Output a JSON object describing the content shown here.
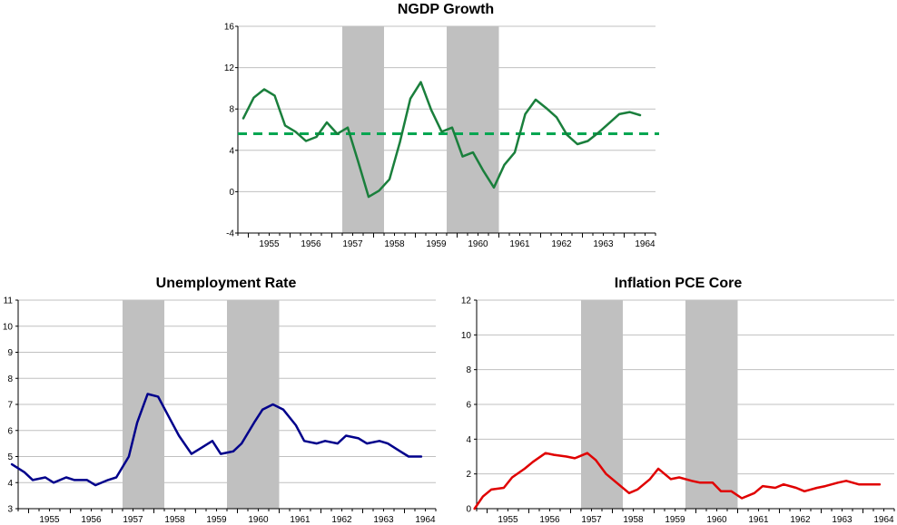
{
  "chart_data": [
    {
      "type": "line",
      "title": "NGDP Growth",
      "xlabel": "",
      "ylabel": "",
      "xlim": [
        1954.75,
        1964.75
      ],
      "ylim": [
        -4,
        16
      ],
      "yticks": [
        -4,
        0,
        4,
        8,
        12,
        16
      ],
      "xticks": [
        "1955",
        "1956",
        "1957",
        "1958",
        "1959",
        "1960",
        "1961",
        "1962",
        "1963",
        "1964"
      ],
      "recessions": [
        [
          1957.25,
          1958.25
        ],
        [
          1959.75,
          1961.0
        ]
      ],
      "reference_line": {
        "value": 5.6,
        "color": "#00a651",
        "style": "dashed"
      },
      "series": [
        {
          "name": "NGDP Growth",
          "color": "#1a7f3c",
          "x": [
            1954.88,
            1955.13,
            1955.38,
            1955.63,
            1955.88,
            1956.13,
            1956.38,
            1956.63,
            1956.88,
            1957.13,
            1957.38,
            1957.63,
            1957.88,
            1958.13,
            1958.38,
            1958.63,
            1958.88,
            1959.13,
            1959.38,
            1959.63,
            1959.88,
            1960.13,
            1960.38,
            1960.63,
            1960.88,
            1961.13,
            1961.38,
            1961.63,
            1961.88,
            1962.13,
            1962.38,
            1962.63,
            1962.88,
            1963.13,
            1963.38,
            1963.63,
            1963.88,
            1964.13,
            1964.38
          ],
          "values": [
            7.1,
            9.1,
            9.9,
            9.3,
            6.4,
            5.8,
            4.9,
            5.3,
            6.7,
            5.6,
            6.2,
            2.9,
            -0.5,
            0.1,
            1.2,
            4.8,
            9.0,
            10.6,
            7.9,
            5.8,
            6.2,
            3.4,
            3.8,
            2.0,
            0.4,
            2.6,
            3.8,
            7.5,
            8.9,
            8.1,
            7.2,
            5.5,
            4.6,
            4.9,
            5.7,
            6.6,
            7.5,
            7.7,
            7.4
          ]
        }
      ]
    },
    {
      "type": "line",
      "title": "Unemployment Rate",
      "xlabel": "",
      "ylabel": "",
      "xlim": [
        1954.75,
        1964.75
      ],
      "ylim": [
        3,
        11
      ],
      "yticks": [
        3,
        4,
        5,
        6,
        7,
        8,
        9,
        10,
        11
      ],
      "xticks": [
        "1955",
        "1956",
        "1957",
        "1958",
        "1959",
        "1960",
        "1961",
        "1962",
        "1963",
        "1964"
      ],
      "recessions": [
        [
          1957.25,
          1958.25
        ],
        [
          1959.75,
          1961.0
        ]
      ],
      "series": [
        {
          "name": "Unemployment Rate",
          "color": "#00008b",
          "x": [
            1954.6,
            1954.9,
            1955.1,
            1955.4,
            1955.6,
            1955.9,
            1956.1,
            1956.4,
            1956.6,
            1956.9,
            1957.1,
            1957.4,
            1957.6,
            1957.85,
            1958.1,
            1958.4,
            1958.6,
            1958.9,
            1959.1,
            1959.4,
            1959.6,
            1959.9,
            1960.1,
            1960.4,
            1960.6,
            1960.85,
            1961.1,
            1961.4,
            1961.6,
            1961.9,
            1962.1,
            1962.4,
            1962.6,
            1962.9,
            1963.1,
            1963.4,
            1963.6,
            1963.9,
            1964.1,
            1964.4
          ],
          "values": [
            4.7,
            4.4,
            4.1,
            4.2,
            4.0,
            4.2,
            4.1,
            4.1,
            3.9,
            4.1,
            4.2,
            5.0,
            6.3,
            7.4,
            7.3,
            6.4,
            5.8,
            5.1,
            5.3,
            5.6,
            5.1,
            5.2,
            5.5,
            6.3,
            6.8,
            7.0,
            6.8,
            6.2,
            5.6,
            5.5,
            5.6,
            5.5,
            5.8,
            5.7,
            5.5,
            5.6,
            5.5,
            5.2,
            5.0,
            5.0
          ]
        }
      ]
    },
    {
      "type": "line",
      "title": "Inflation PCE Core",
      "xlabel": "",
      "ylabel": "",
      "xlim": [
        1954.75,
        1964.75
      ],
      "ylim": [
        0,
        12
      ],
      "yticks": [
        0,
        2,
        4,
        6,
        8,
        10,
        12
      ],
      "xticks": [
        "1955",
        "1956",
        "1957",
        "1958",
        "1959",
        "1960",
        "1961",
        "1962",
        "1963",
        "1964"
      ],
      "recessions": [
        [
          1957.25,
          1958.25
        ],
        [
          1959.75,
          1961.0
        ]
      ],
      "series": [
        {
          "name": "Inflation PCE Core",
          "color": "#e00000",
          "x": [
            1954.7,
            1954.9,
            1955.1,
            1955.4,
            1955.6,
            1955.9,
            1956.1,
            1956.4,
            1956.6,
            1956.9,
            1957.1,
            1957.4,
            1957.6,
            1957.85,
            1958.1,
            1958.4,
            1958.6,
            1958.9,
            1959.1,
            1959.4,
            1959.6,
            1959.9,
            1960.1,
            1960.4,
            1960.6,
            1960.85,
            1961.1,
            1961.4,
            1961.6,
            1961.9,
            1962.1,
            1962.4,
            1962.6,
            1962.9,
            1963.1,
            1963.4,
            1963.6,
            1963.9,
            1964.1,
            1964.4
          ],
          "values": [
            0.0,
            0.7,
            1.1,
            1.2,
            1.8,
            2.3,
            2.7,
            3.2,
            3.1,
            3.0,
            2.9,
            3.2,
            2.8,
            2.0,
            1.5,
            0.9,
            1.1,
            1.7,
            2.3,
            1.7,
            1.8,
            1.6,
            1.5,
            1.5,
            1.0,
            1.0,
            0.6,
            0.9,
            1.3,
            1.2,
            1.4,
            1.2,
            1.0,
            1.2,
            1.3,
            1.5,
            1.6,
            1.4,
            1.4,
            1.4
          ]
        }
      ]
    }
  ]
}
